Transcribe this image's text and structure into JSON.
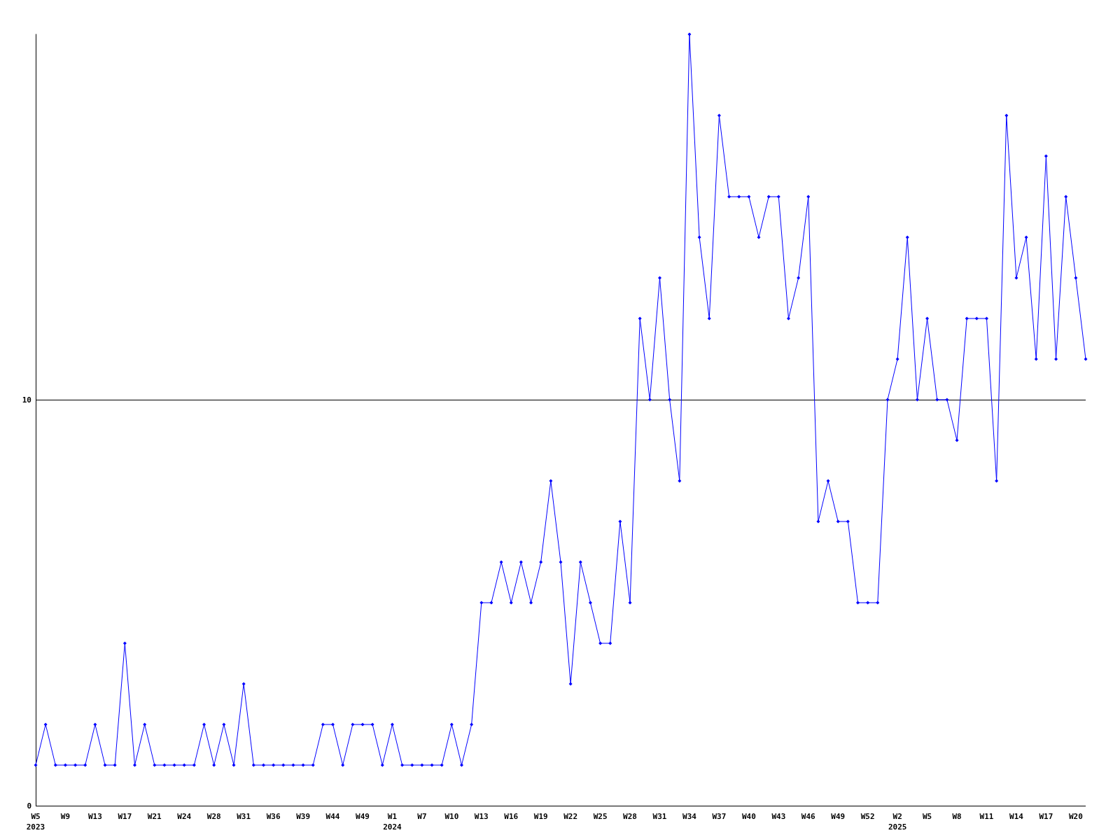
{
  "chart_data": {
    "type": "line",
    "categories": [
      "W5\n2023",
      null,
      null,
      "W9",
      null,
      null,
      "W13",
      null,
      null,
      "W17",
      null,
      null,
      "W21",
      null,
      null,
      "W24",
      null,
      null,
      "W28",
      null,
      null,
      "W31",
      null,
      null,
      "W36",
      null,
      null,
      "W39",
      null,
      null,
      "W44",
      null,
      null,
      "W49",
      null,
      null,
      "W1\n2024",
      null,
      null,
      "W7",
      null,
      null,
      "W10",
      null,
      null,
      "W13",
      null,
      null,
      "W16",
      null,
      null,
      "W19",
      null,
      null,
      "W22",
      null,
      null,
      "W25",
      null,
      null,
      "W28",
      null,
      null,
      "W31",
      null,
      null,
      "W34",
      null,
      null,
      "W37",
      null,
      null,
      "W40",
      null,
      null,
      "W43",
      null,
      null,
      "W46",
      null,
      null,
      "W49",
      null,
      null,
      "W52",
      null,
      null,
      "W2\n2025",
      null,
      null,
      "W5",
      null,
      null,
      "W8",
      null,
      null,
      "W11",
      null,
      null,
      "W14",
      null,
      null,
      "W17",
      null,
      null,
      "W20",
      null
    ],
    "series": [
      {
        "color": "#0000ff",
        "values": [
          1,
          2,
          1,
          1,
          1,
          1,
          2,
          1,
          1,
          4,
          1,
          2,
          1,
          1,
          1,
          1,
          1,
          2,
          1,
          2,
          1,
          3,
          1,
          1,
          1,
          1,
          1,
          1,
          1,
          2,
          2,
          1,
          2,
          2,
          2,
          1,
          2,
          1,
          1,
          1,
          1,
          1,
          2,
          1,
          2,
          5,
          5,
          6,
          5,
          6,
          5,
          6,
          8,
          6,
          3,
          6,
          5,
          4,
          4,
          7,
          5,
          12,
          10,
          13,
          10,
          8,
          19,
          14,
          12,
          17,
          15,
          15,
          15,
          14,
          15,
          15,
          12,
          13,
          15,
          7,
          8,
          7,
          7,
          5,
          5,
          5,
          10,
          11,
          14,
          10,
          12,
          10,
          10,
          9,
          12,
          12,
          12,
          8,
          17,
          13,
          14,
          11,
          16,
          11,
          15,
          13,
          11
        ]
      }
    ],
    "ylim": [
      0,
      19
    ],
    "yticks": [
      0,
      10
    ],
    "grid": "y",
    "marker": "diamond",
    "line_style": "solid"
  }
}
